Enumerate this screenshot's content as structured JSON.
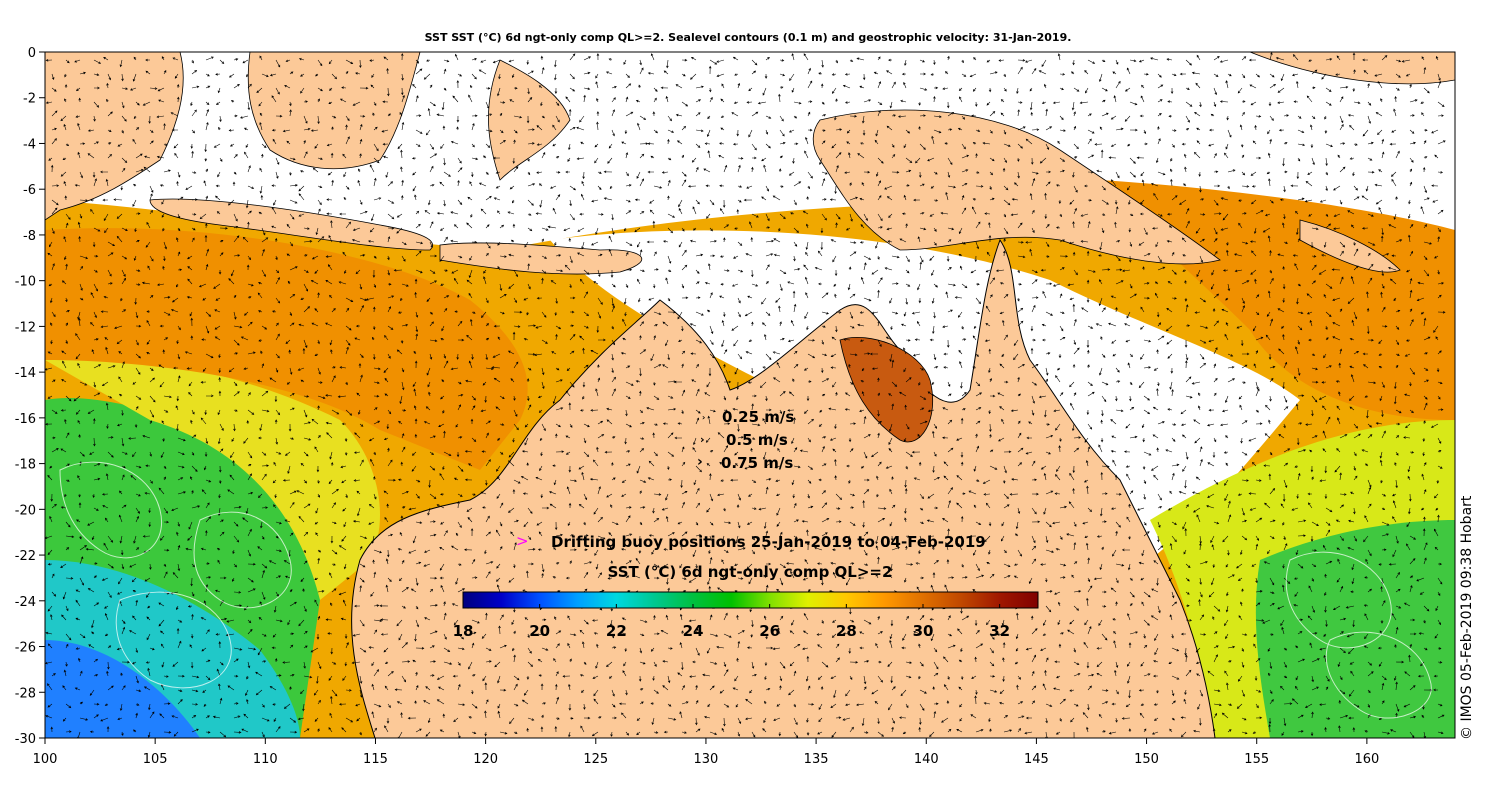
{
  "title": "SST SST (°C) 6d ngt-only comp QL>=2. Sealevel contours (0.1 m) and geostrophic velocity: 31-Jan-2019.",
  "axes": {
    "lon_range": [
      100,
      164
    ],
    "lat_range": [
      -30,
      0
    ],
    "x_ticks": [
      100,
      105,
      110,
      115,
      120,
      125,
      130,
      135,
      140,
      145,
      150,
      155,
      160
    ],
    "y_ticks": [
      0,
      -2,
      -4,
      -6,
      -8,
      -10,
      -12,
      -14,
      -16,
      -18,
      -20,
      -22,
      -24,
      -26,
      -28,
      -30
    ]
  },
  "velocity_legend": [
    {
      "label": "0.25 m/s",
      "speed": 0.25
    },
    {
      "label": "0.5 m/s",
      "speed": 0.5
    },
    {
      "label": "0.75 m/s",
      "speed": 0.75
    }
  ],
  "buoy_legend": {
    "marker": ">",
    "label": "Drifting buoy positions 25-Jan-2019 to 04-Feb-2019",
    "marker_color": "#ff00ff"
  },
  "colorbar": {
    "title": "SST (°C) 6d ngt-only comp QL>=2",
    "min": 18,
    "max": 33,
    "tick_labels": [
      "18",
      "20",
      "22",
      "24",
      "26",
      "28",
      "30",
      "32"
    ],
    "tick_values": [
      18,
      20,
      22,
      24,
      26,
      28,
      30,
      32
    ],
    "colors": [
      "#00007f",
      "#0000c8",
      "#0050ff",
      "#00a0ff",
      "#00d8e0",
      "#00c890",
      "#00c040",
      "#00c000",
      "#80e000",
      "#e0f000",
      "#ffc800",
      "#ff9800",
      "#e07000",
      "#c04800",
      "#a01800",
      "#800000"
    ]
  },
  "credit": "© IMOS 05-Feb-2019 09:38 Hobart",
  "colors": {
    "land": "#fcc998",
    "no_data": "#ffffff",
    "coast": "#000000",
    "arrow": "#000000"
  }
}
